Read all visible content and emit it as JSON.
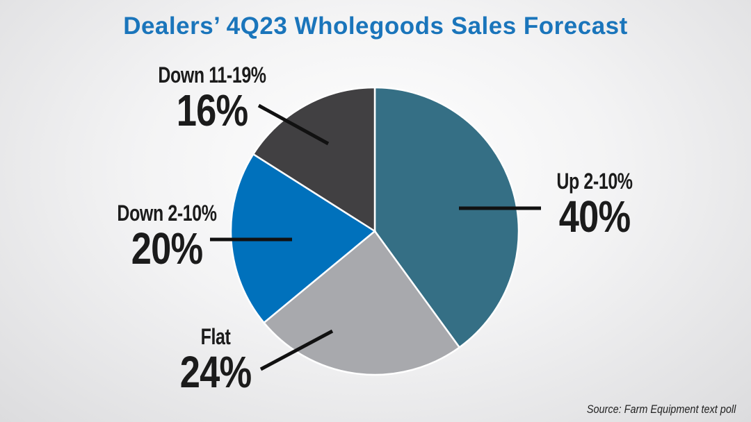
{
  "chart_data": {
    "type": "pie",
    "title": "Dealers’ 4Q23 Wholegoods Sales Forecast",
    "slices": [
      {
        "label": "Up 2-10%",
        "value": 40,
        "value_label": "40%",
        "color": "#356f85"
      },
      {
        "label": "Flat",
        "value": 24,
        "value_label": "24%",
        "color": "#a8a9ad"
      },
      {
        "label": "Down 2-10%",
        "value": 20,
        "value_label": "20%",
        "color": "#0071bc"
      },
      {
        "label": "Down 11-19%",
        "value": 16,
        "value_label": "16%",
        "color": "#414042"
      }
    ],
    "start_angle_deg": 0,
    "direction": "clockwise",
    "source": "Source: Farm Equipment text poll"
  }
}
